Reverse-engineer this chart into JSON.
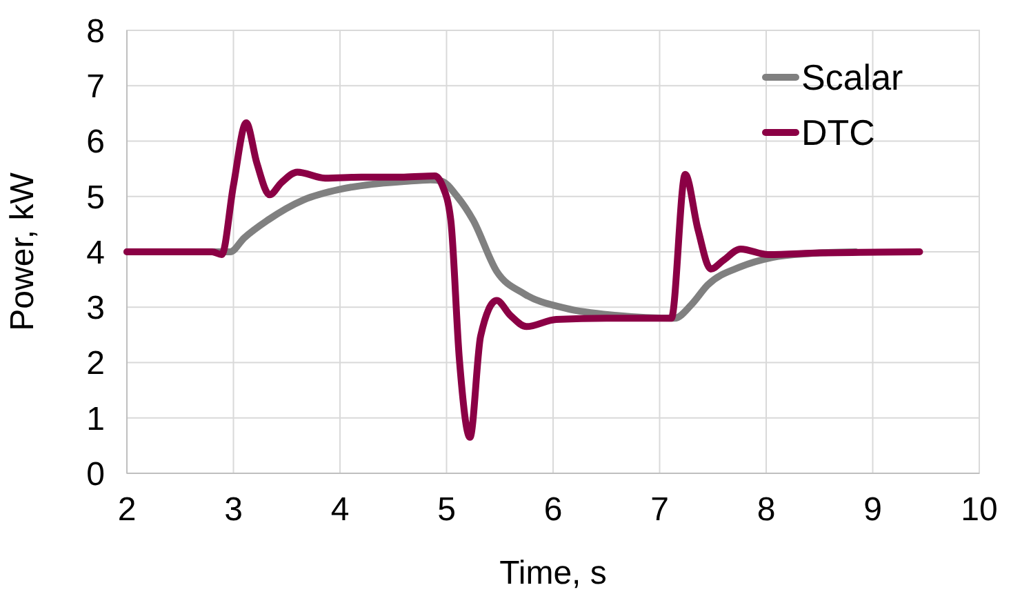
{
  "chart_data": {
    "type": "line",
    "xlabel": "Time, s",
    "ylabel": "Power, kW",
    "xlim": [
      2,
      10
    ],
    "ylim": [
      0,
      8
    ],
    "xticks": [
      2,
      3,
      4,
      5,
      6,
      7,
      8,
      9,
      10
    ],
    "yticks": [
      0,
      1,
      2,
      3,
      4,
      5,
      6,
      7,
      8
    ],
    "grid": true,
    "legend": "top right",
    "marker": "none",
    "line_style": "solid",
    "series": [
      {
        "name": "Scalar",
        "color": "#808080",
        "x": [
          2,
          2.97,
          3.1,
          3.32,
          3.66,
          4.0,
          4.3,
          4.6,
          4.85,
          4.95,
          5.1,
          5.25,
          5.47,
          5.73,
          6.12,
          6.6,
          7.14,
          7.3,
          7.45,
          7.76,
          8.06,
          8.4,
          8.84
        ],
        "values": [
          4.0,
          4.0,
          4.25,
          4.57,
          4.94,
          5.13,
          5.22,
          5.27,
          5.3,
          5.28,
          5.0,
          4.57,
          3.65,
          3.24,
          2.98,
          2.85,
          2.8,
          3.05,
          3.4,
          3.73,
          3.9,
          3.97,
          4.0
        ]
      },
      {
        "name": "DTC",
        "color": "#8b0045",
        "x": [
          2,
          2.8,
          2.89,
          3.0,
          3.12,
          3.22,
          3.34,
          3.45,
          3.6,
          3.86,
          4.2,
          4.6,
          4.89,
          4.96,
          5.04,
          5.12,
          5.22,
          5.32,
          5.47,
          5.6,
          5.75,
          6.03,
          6.5,
          7.11,
          7.24,
          7.36,
          7.48,
          7.6,
          7.76,
          8.02,
          8.5,
          9.44
        ],
        "values": [
          4.0,
          4.0,
          3.95,
          5.2,
          6.33,
          5.6,
          5.03,
          5.25,
          5.44,
          5.33,
          5.35,
          5.35,
          5.37,
          5.2,
          4.57,
          2.07,
          0.65,
          2.48,
          3.12,
          2.85,
          2.65,
          2.78,
          2.8,
          2.8,
          5.4,
          4.4,
          3.69,
          3.85,
          4.05,
          3.95,
          3.98,
          4.0
        ]
      }
    ]
  }
}
